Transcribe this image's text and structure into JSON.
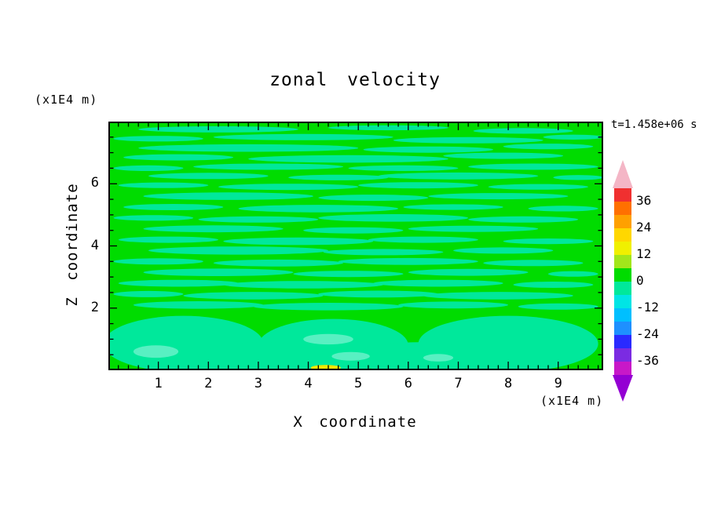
{
  "title": "zonal velocity",
  "time_label": "t=1.458e+06 s",
  "x_axis": {
    "label": "X coordinate",
    "unit": "(x1E4 m)",
    "ticks": [
      1,
      2,
      3,
      4,
      5,
      6,
      7,
      8,
      9
    ],
    "min": 0,
    "max": 9.9,
    "major_step": 1,
    "minor_step": 0.2
  },
  "z_axis": {
    "label": "Z coordinate",
    "unit": "(x1E4 m)",
    "ticks": [
      2,
      4,
      6
    ],
    "min": 0,
    "max": 8,
    "major_step": 2,
    "minor_step": 0.5
  },
  "colorbar": {
    "labels_top_to_bottom": [
      "36",
      "24",
      "12",
      "0",
      "-12",
      "-24",
      "-36"
    ],
    "segment_colors_top_to_bottom": [
      "#F03030",
      "#FF7000",
      "#FFA000",
      "#FFD700",
      "#F0F000",
      "#A2E61B",
      "#00DC00",
      "#00E89B",
      "#00E5E5",
      "#00BFFF",
      "#1E90FF",
      "#2A2AFF",
      "#7B2BE2",
      "#C818C8"
    ],
    "arrow_top_color": "#F4B6C6",
    "arrow_bottom_color": "#9400D3",
    "level_min": -42,
    "level_max": 42,
    "level_step": 6
  },
  "chart_data": {
    "type": "filled_contour",
    "title": "zonal velocity",
    "xlabel": "X coordinate",
    "x_unit": "(x1E4 m)",
    "x_range": [
      0,
      9.9
    ],
    "ylabel": "Z coordinate",
    "y_unit": "(x1E4 m)",
    "z_range": [
      0,
      8
    ],
    "time_annotation": "t=1.458e+06 s",
    "contour_level_step": 6,
    "legend_position": "right colorbar",
    "description": "Field is near zero everywhere: background in 0..6 band (green) with horizontal -6..0 streaks (spring green); bottom boundary region mostly -6..0 with a few -12..-6 light patches and one small 12..18 spot near x=4.35",
    "colors": {
      "background": "#00DC00",
      "streak": "#00E89B",
      "patch": "#58F0C2",
      "spot": "#F0E800"
    },
    "background_value_range": [
      0,
      6
    ],
    "streak_value_range": [
      -6,
      0
    ],
    "patch_value_range": [
      -12,
      -6
    ],
    "spot_value_range": [
      12,
      18
    ],
    "streaks": [
      [
        2.2,
        7.75,
        1.6,
        0.1
      ],
      [
        5.6,
        7.8,
        1.2,
        0.08
      ],
      [
        8.3,
        7.7,
        1.0,
        0.09
      ],
      [
        1.0,
        7.45,
        0.9,
        0.09
      ],
      [
        3.9,
        7.5,
        1.8,
        0.1
      ],
      [
        7.2,
        7.4,
        1.5,
        0.1
      ],
      [
        9.3,
        7.5,
        0.6,
        0.08
      ],
      [
        2.8,
        7.15,
        2.2,
        0.12
      ],
      [
        6.4,
        7.1,
        1.3,
        0.1
      ],
      [
        8.8,
        7.2,
        0.9,
        0.09
      ],
      [
        1.4,
        6.85,
        1.1,
        0.1
      ],
      [
        4.8,
        6.8,
        2.0,
        0.12
      ],
      [
        7.9,
        6.9,
        1.2,
        0.1
      ],
      [
        0.8,
        6.5,
        0.7,
        0.09
      ],
      [
        3.2,
        6.55,
        1.5,
        0.1
      ],
      [
        5.9,
        6.5,
        1.1,
        0.09
      ],
      [
        8.5,
        6.55,
        1.3,
        0.1
      ],
      [
        2.0,
        6.25,
        1.2,
        0.1
      ],
      [
        4.6,
        6.2,
        1.0,
        0.09
      ],
      [
        7.0,
        6.25,
        1.6,
        0.11
      ],
      [
        9.4,
        6.2,
        0.5,
        0.08
      ],
      [
        1.1,
        5.95,
        0.9,
        0.09
      ],
      [
        3.6,
        5.9,
        1.4,
        0.1
      ],
      [
        6.2,
        5.95,
        1.2,
        0.1
      ],
      [
        8.6,
        5.9,
        1.0,
        0.09
      ],
      [
        2.4,
        5.6,
        1.7,
        0.12
      ],
      [
        5.3,
        5.55,
        1.1,
        0.1
      ],
      [
        7.8,
        5.6,
        1.4,
        0.1
      ],
      [
        1.3,
        5.25,
        1.0,
        0.1
      ],
      [
        4.2,
        5.2,
        1.6,
        0.12
      ],
      [
        6.9,
        5.25,
        1.0,
        0.09
      ],
      [
        9.1,
        5.2,
        0.7,
        0.09
      ],
      [
        0.9,
        4.9,
        0.8,
        0.09
      ],
      [
        3.0,
        4.85,
        1.2,
        0.1
      ],
      [
        5.7,
        4.9,
        1.5,
        0.12
      ],
      [
        8.3,
        4.85,
        1.1,
        0.1
      ],
      [
        2.1,
        4.55,
        1.4,
        0.11
      ],
      [
        4.9,
        4.5,
        1.0,
        0.1
      ],
      [
        7.3,
        4.55,
        1.3,
        0.1
      ],
      [
        1.2,
        4.2,
        1.0,
        0.1
      ],
      [
        3.8,
        4.15,
        1.5,
        0.12
      ],
      [
        6.3,
        4.2,
        1.1,
        0.1
      ],
      [
        8.8,
        4.15,
        0.9,
        0.09
      ],
      [
        2.6,
        3.85,
        1.8,
        0.13
      ],
      [
        5.5,
        3.8,
        1.2,
        0.1
      ],
      [
        7.9,
        3.85,
        1.0,
        0.1
      ],
      [
        1.0,
        3.5,
        0.9,
        0.1
      ],
      [
        3.4,
        3.45,
        1.3,
        0.11
      ],
      [
        6.0,
        3.5,
        1.4,
        0.11
      ],
      [
        8.5,
        3.45,
        1.0,
        0.1
      ],
      [
        2.2,
        3.15,
        1.5,
        0.12
      ],
      [
        4.8,
        3.1,
        1.1,
        0.1
      ],
      [
        7.2,
        3.15,
        1.2,
        0.11
      ],
      [
        9.3,
        3.1,
        0.5,
        0.09
      ],
      [
        1.4,
        2.8,
        1.2,
        0.11
      ],
      [
        3.9,
        2.75,
        1.6,
        0.12
      ],
      [
        6.6,
        2.8,
        1.3,
        0.11
      ],
      [
        8.9,
        2.75,
        0.8,
        0.1
      ],
      [
        0.8,
        2.45,
        0.7,
        0.1
      ],
      [
        2.9,
        2.4,
        1.4,
        0.12
      ],
      [
        5.4,
        2.45,
        1.2,
        0.11
      ],
      [
        7.8,
        2.4,
        1.5,
        0.12
      ],
      [
        1.8,
        2.1,
        1.3,
        0.12
      ],
      [
        4.4,
        2.05,
        1.5,
        0.12
      ],
      [
        6.9,
        2.1,
        1.1,
        0.11
      ],
      [
        9.0,
        2.05,
        0.8,
        0.1
      ]
    ],
    "bottom_blobs": [
      [
        1.5,
        0.85,
        1.6,
        0.9
      ],
      [
        4.5,
        0.8,
        1.5,
        0.85
      ],
      [
        8.0,
        0.85,
        1.8,
        0.9
      ],
      [
        3.1,
        0.4,
        1.3,
        0.5
      ],
      [
        6.2,
        0.4,
        1.3,
        0.5
      ]
    ],
    "light_patches": [
      [
        0.95,
        0.6,
        0.45,
        0.2
      ],
      [
        4.4,
        1.0,
        0.5,
        0.17
      ],
      [
        4.85,
        0.45,
        0.38,
        0.14
      ],
      [
        6.6,
        0.4,
        0.3,
        0.12
      ]
    ],
    "hot_spots": [
      [
        4.35,
        0.08,
        0.3,
        0.09
      ]
    ]
  }
}
